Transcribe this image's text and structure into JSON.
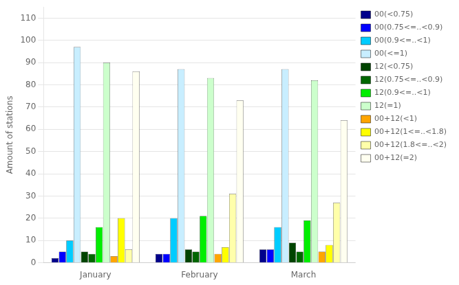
{
  "chart_data": {
    "type": "bar",
    "categories": [
      "January",
      "February",
      "March"
    ],
    "series": [
      {
        "name": "00(<0.75)",
        "color": "#00008B",
        "values": [
          2,
          4,
          6
        ]
      },
      {
        "name": "00(0.75<=..<0.9)",
        "color": "#0000FF",
        "values": [
          5,
          4,
          6
        ]
      },
      {
        "name": "00(0.9<=..<1)",
        "color": "#00CCFF",
        "values": [
          10,
          20,
          16
        ]
      },
      {
        "name": "00(<=1)",
        "color": "#C8EEFF",
        "values": [
          97,
          87,
          87
        ]
      },
      {
        "name": "12(<0.75)",
        "color": "#004400",
        "values": [
          5,
          6,
          9
        ]
      },
      {
        "name": "12(0.75<=..<0.9)",
        "color": "#006600",
        "values": [
          4,
          5,
          5
        ]
      },
      {
        "name": "12(0.9<=..<1)",
        "color": "#00EE00",
        "values": [
          16,
          21,
          19
        ]
      },
      {
        "name": "12(=1)",
        "color": "#CCFFCC",
        "values": [
          90,
          83,
          82
        ]
      },
      {
        "name": "00+12(<1)",
        "color": "#FFA500",
        "values": [
          3,
          4,
          5
        ]
      },
      {
        "name": "00+12(1<=..<1.8)",
        "color": "#FFFF00",
        "values": [
          20,
          7,
          8
        ]
      },
      {
        "name": "00+12(1.8<=..<2)",
        "color": "#FFFFAA",
        "values": [
          6,
          31,
          27
        ]
      },
      {
        "name": "00+12(=2)",
        "color": "#FFFFF0",
        "values": [
          86,
          73,
          64
        ]
      }
    ],
    "ylabel": "Amount of stations",
    "ylim": [
      0,
      115
    ],
    "yticks": [
      0,
      10,
      20,
      30,
      40,
      50,
      60,
      70,
      80,
      90,
      100,
      110
    ],
    "grid": true,
    "legend": "upper right"
  }
}
